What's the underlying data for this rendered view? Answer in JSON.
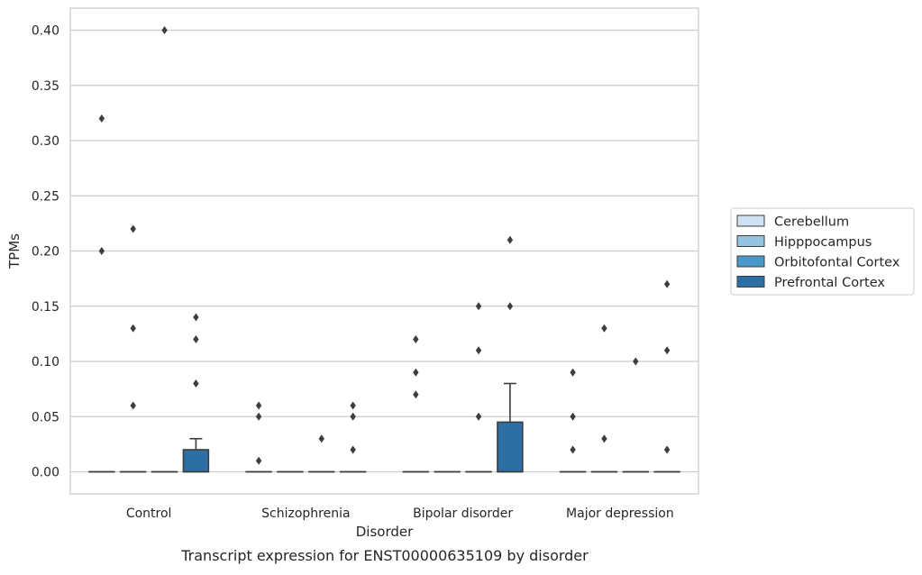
{
  "chart_data": {
    "type": "box",
    "caption": "Transcript expression for ENST00000635109 by disorder",
    "xlabel": "Disorder",
    "ylabel": "TPMs",
    "ylim": [
      -0.02,
      0.42
    ],
    "yticks": [
      "0.00",
      "0.05",
      "0.10",
      "0.15",
      "0.20",
      "0.25",
      "0.30",
      "0.35",
      "0.40"
    ],
    "grid": "horizontal",
    "legend_placement": "right",
    "categories": [
      "Control",
      "Schizophrenia",
      "Bipolar disorder",
      "Major depression"
    ],
    "series": [
      {
        "name": "Cerebellum",
        "color": "#d0e1f2",
        "boxes": [
          {
            "q1": 0,
            "median": 0,
            "q3": 0,
            "whisker_low": 0,
            "whisker_high": 0,
            "outliers": [
              0.2,
              0.32
            ]
          },
          {
            "q1": 0,
            "median": 0,
            "q3": 0,
            "whisker_low": 0,
            "whisker_high": 0,
            "outliers": [
              0.01,
              0.05,
              0.06
            ]
          },
          {
            "q1": 0,
            "median": 0,
            "q3": 0,
            "whisker_low": 0,
            "whisker_high": 0,
            "outliers": [
              0.07,
              0.09,
              0.12
            ]
          },
          {
            "q1": 0,
            "median": 0,
            "q3": 0,
            "whisker_low": 0,
            "whisker_high": 0,
            "outliers": [
              0.02,
              0.05,
              0.09
            ]
          }
        ]
      },
      {
        "name": "Hipppocampus",
        "color": "#94c4df",
        "boxes": [
          {
            "q1": 0,
            "median": 0,
            "q3": 0,
            "whisker_low": 0,
            "whisker_high": 0,
            "outliers": [
              0.06,
              0.13,
              0.22
            ]
          },
          {
            "q1": 0,
            "median": 0,
            "q3": 0,
            "whisker_low": 0,
            "whisker_high": 0,
            "outliers": []
          },
          {
            "q1": 0,
            "median": 0,
            "q3": 0,
            "whisker_low": 0,
            "whisker_high": 0,
            "outliers": []
          },
          {
            "q1": 0,
            "median": 0,
            "q3": 0,
            "whisker_low": 0,
            "whisker_high": 0,
            "outliers": [
              0.03,
              0.13
            ]
          }
        ]
      },
      {
        "name": "Orbitofontal Cortex",
        "color": "#4a98c9",
        "boxes": [
          {
            "q1": 0,
            "median": 0,
            "q3": 0,
            "whisker_low": 0,
            "whisker_high": 0,
            "outliers": [
              0.4
            ]
          },
          {
            "q1": 0,
            "median": 0,
            "q3": 0,
            "whisker_low": 0,
            "whisker_high": 0,
            "outliers": [
              0.03
            ]
          },
          {
            "q1": 0,
            "median": 0,
            "q3": 0,
            "whisker_low": 0,
            "whisker_high": 0,
            "outliers": [
              0.05,
              0.11,
              0.15
            ]
          },
          {
            "q1": 0,
            "median": 0,
            "q3": 0,
            "whisker_low": 0,
            "whisker_high": 0,
            "outliers": [
              0.1
            ]
          }
        ]
      },
      {
        "name": "Prefrontal Cortex",
        "color": "#2d6ea5",
        "boxes": [
          {
            "q1": 0,
            "median": 0,
            "q3": 0.02,
            "whisker_low": 0,
            "whisker_high": 0.03,
            "outliers": [
              0.08,
              0.12,
              0.14
            ]
          },
          {
            "q1": 0,
            "median": 0,
            "q3": 0,
            "whisker_low": 0,
            "whisker_high": 0,
            "outliers": [
              0.02,
              0.05,
              0.06
            ]
          },
          {
            "q1": 0,
            "median": 0,
            "q3": 0.045,
            "whisker_low": 0,
            "whisker_high": 0.08,
            "outliers": [
              0.15,
              0.21
            ]
          },
          {
            "q1": 0,
            "median": 0,
            "q3": 0,
            "whisker_low": 0,
            "whisker_high": 0,
            "outliers": [
              0.02,
              0.11,
              0.17
            ]
          }
        ]
      }
    ]
  }
}
